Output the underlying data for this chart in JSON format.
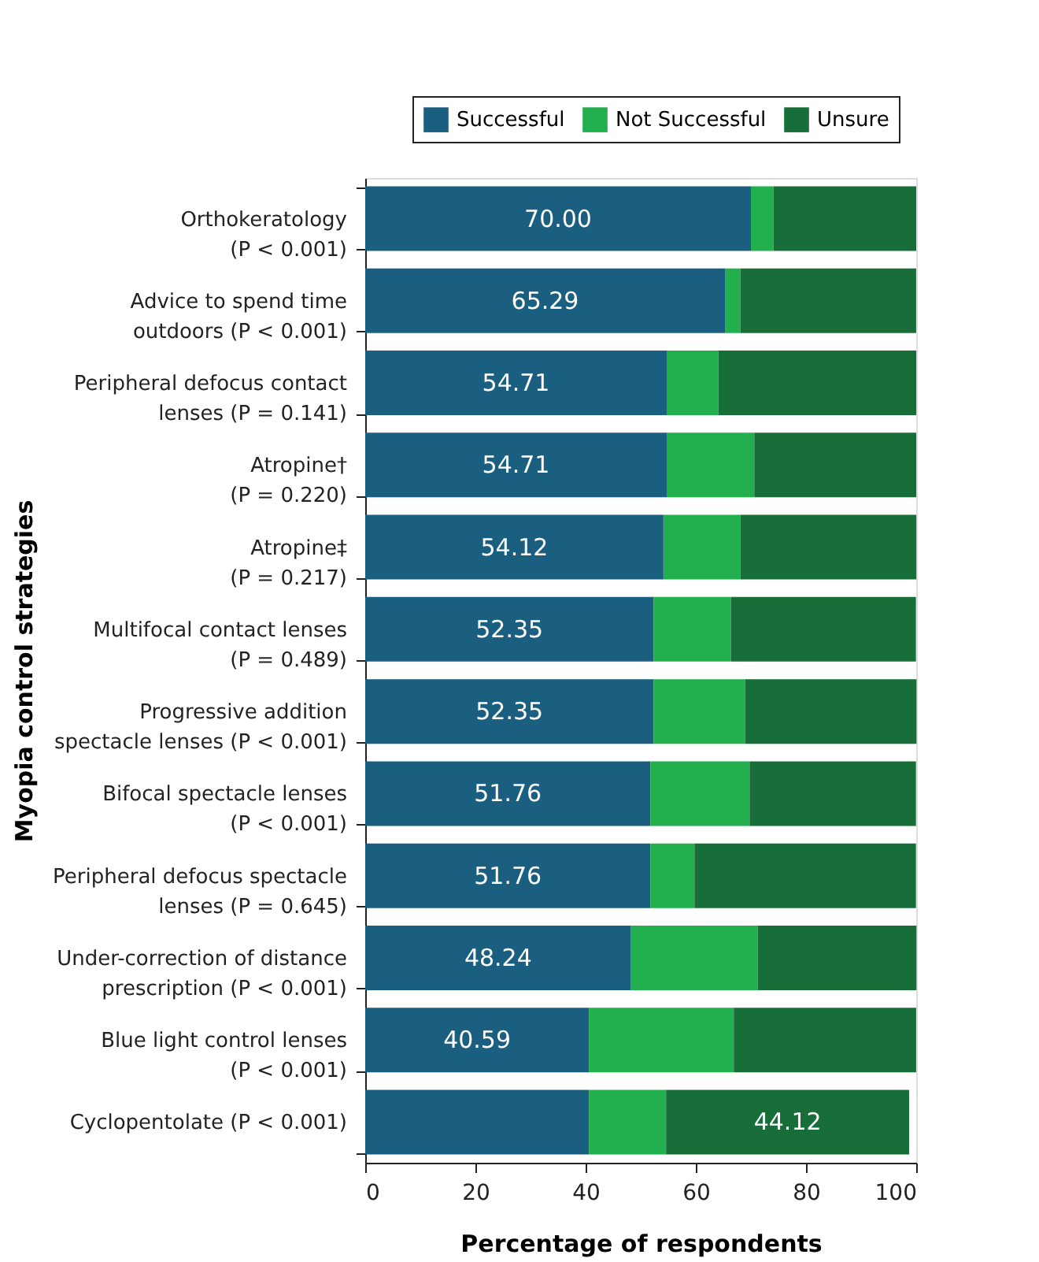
{
  "chart_data": {
    "type": "bar",
    "orientation": "horizontal",
    "stacked": true,
    "xlabel": "Percentage of respondents",
    "ylabel": "Myopia control strategies",
    "categories": [
      "Orthokeratology\n(P < 0.001)",
      "Advice to spend time\noutdoors (P < 0.001)",
      "Peripheral defocus contact\nlenses (P = 0.141)",
      "Atropine†\n(P = 0.220)",
      "Atropine‡\n(P = 0.217)",
      "Multifocal contact lenses\n(P = 0.489)",
      "Progressive addition\nspectacle lenses (P < 0.001)",
      "Bifocal spectacle lenses\n(P < 0.001)",
      "Peripheral defocus spectacle\nlenses (P = 0.645)",
      "Under-correction of distance\nprescription (P < 0.001)",
      "Blue light control lenses\n(P < 0.001)",
      "Cyclopentolate (P < 0.001)"
    ],
    "series": [
      {
        "name": "Successful",
        "color": "#1a5f80",
        "values": [
          70.0,
          65.29,
          54.71,
          54.71,
          54.12,
          52.35,
          52.35,
          51.76,
          51.76,
          48.24,
          40.59,
          40.6
        ],
        "value_labels": [
          "70.00",
          "65.29",
          "54.71",
          "54.71",
          "54.12",
          "52.35",
          "52.35",
          "51.76",
          "51.76",
          "48.24",
          "40.59",
          null
        ]
      },
      {
        "name": "Not Successful",
        "color": "#21b04d",
        "values": [
          4.1,
          2.8,
          9.4,
          15.9,
          14.0,
          14.0,
          16.6,
          18.0,
          8.0,
          23.0,
          26.3,
          14.0
        ]
      },
      {
        "name": "Unsure",
        "color": "#176e38",
        "values": [
          25.9,
          31.9,
          35.9,
          29.4,
          31.9,
          33.6,
          31.1,
          30.2,
          40.2,
          28.8,
          33.1,
          44.12
        ],
        "value_labels": [
          null,
          null,
          null,
          null,
          null,
          null,
          null,
          null,
          null,
          null,
          null,
          "44.12"
        ]
      }
    ],
    "xlim": [
      0,
      100
    ],
    "xticks": [
      0,
      20,
      40,
      60,
      80,
      100
    ],
    "grid": false,
    "legend": "top right"
  }
}
